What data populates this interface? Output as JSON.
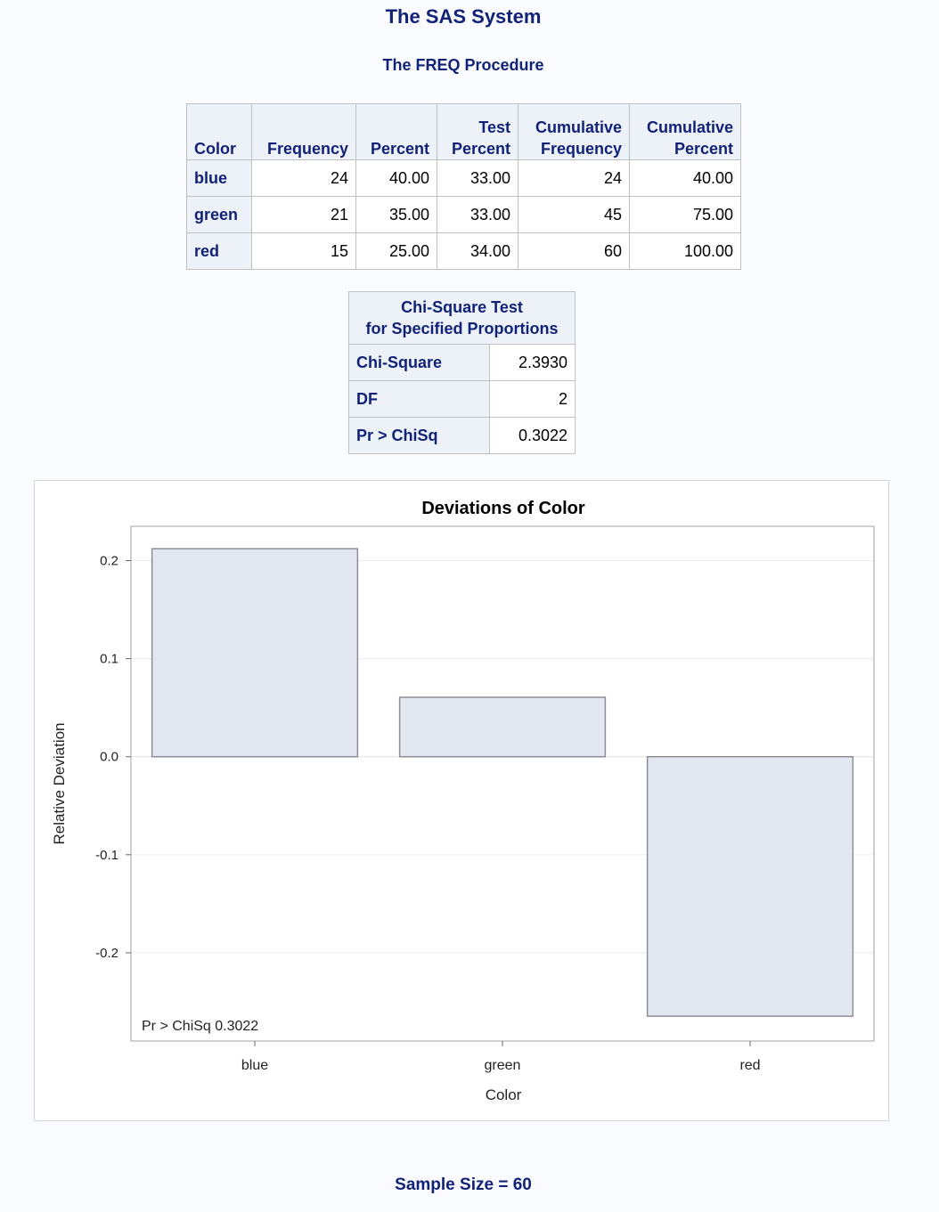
{
  "titles": {
    "system": "The SAS System",
    "procedure": "The FREQ Procedure"
  },
  "freq_table": {
    "headers": [
      [
        "",
        "Color"
      ],
      [
        "",
        "Frequency"
      ],
      [
        "",
        "Percent"
      ],
      [
        "Test",
        "Percent"
      ],
      [
        "Cumulative",
        "Frequency"
      ],
      [
        "Cumulative",
        "Percent"
      ]
    ],
    "rows": [
      {
        "label": "blue",
        "cells": [
          "24",
          "40.00",
          "33.00",
          "24",
          "40.00"
        ]
      },
      {
        "label": "green",
        "cells": [
          "21",
          "35.00",
          "33.00",
          "45",
          "75.00"
        ]
      },
      {
        "label": "red",
        "cells": [
          "15",
          "25.00",
          "34.00",
          "60",
          "100.00"
        ]
      }
    ]
  },
  "chi_table": {
    "header_line1": "Chi-Square Test",
    "header_line2": "for Specified Proportions",
    "rows": [
      {
        "label": "Chi-Square",
        "value": "2.3930"
      },
      {
        "label": "DF",
        "value": "2"
      },
      {
        "label": "Pr > ChiSq",
        "value": "0.3022"
      }
    ]
  },
  "chart_data": {
    "type": "bar",
    "title": "Deviations of Color",
    "xlabel": "Color",
    "ylabel": "Relative Deviation",
    "categories": [
      "blue",
      "green",
      "red"
    ],
    "values": [
      0.2121,
      0.0606,
      -0.2647
    ],
    "ylim": [
      -0.29,
      0.235
    ],
    "yticks": [
      -0.2,
      -0.1,
      0.0,
      0.1,
      0.2
    ],
    "ytick_labels": [
      "-0.2",
      "-0.1",
      "0.0",
      "0.1",
      "0.2"
    ],
    "grid": true,
    "annotation": "Pr > ChiSq  0.3022",
    "bar_fill": "#e2e7f0",
    "bar_stroke": "#8e8e96"
  },
  "footer": {
    "sample_size": "Sample Size = 60"
  },
  "colors": {
    "heading": "#112277",
    "header_bg": "#edf2f9",
    "page_bg": "#fafbfe"
  }
}
